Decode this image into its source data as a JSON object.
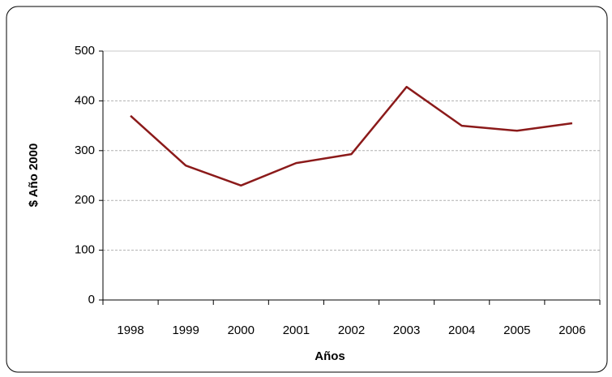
{
  "chart_data": {
    "type": "line",
    "x_label": "Años",
    "y_label": "$ Año 2000",
    "categories": [
      "1998",
      "1999",
      "2000",
      "2001",
      "2002",
      "2003",
      "2004",
      "2005",
      "2006"
    ],
    "values": [
      370,
      270,
      230,
      275,
      293,
      428,
      350,
      340,
      355
    ],
    "color": "#8b1a1a",
    "ylim": [
      0,
      500
    ],
    "yticks": [
      0,
      100,
      200,
      300,
      400,
      500
    ],
    "grid": true
  }
}
